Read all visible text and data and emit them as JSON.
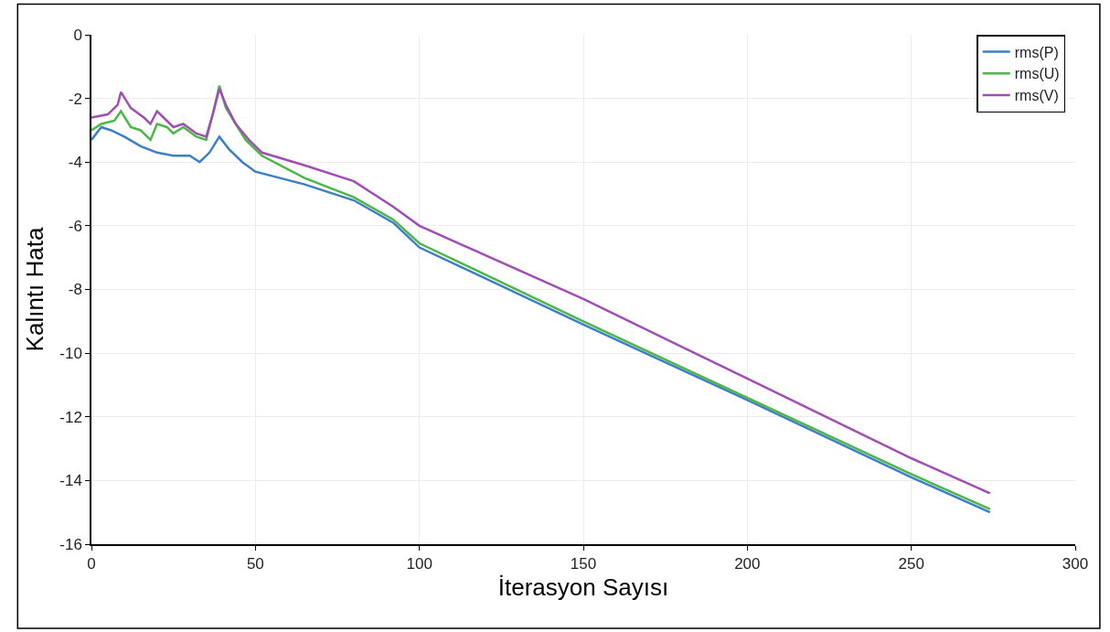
{
  "chart_data": {
    "type": "line",
    "xlabel": "İterasyon Sayısı",
    "ylabel": "Kalıntı Hata",
    "xlim": [
      0,
      300
    ],
    "xticks": [
      0,
      50,
      100,
      150,
      200,
      250,
      300
    ],
    "ylim": [
      -16,
      0
    ],
    "yticks": [
      -16,
      -14,
      -12,
      -10,
      -8,
      -6,
      -4,
      -2,
      0
    ],
    "grid": true,
    "legend": "top right",
    "marker": "none",
    "line_style": "solid",
    "series": [
      {
        "name": "rms(P)",
        "color": "#3d7fc4",
        "x": [
          0,
          3,
          6,
          10,
          15,
          20,
          25,
          30,
          33,
          36,
          39,
          42,
          46,
          50,
          65,
          80,
          92,
          100,
          150,
          200,
          250,
          274
        ],
        "values": [
          -3.3,
          -2.9,
          -3.0,
          -3.2,
          -3.5,
          -3.7,
          -3.8,
          -3.8,
          -4.0,
          -3.7,
          -3.2,
          -3.6,
          -4.0,
          -4.3,
          -4.7,
          -5.2,
          -5.9,
          -6.68,
          -9.1,
          -11.47,
          -13.9,
          -15.0
        ]
      },
      {
        "name": "rms(U)",
        "color": "#4cb748",
        "x": [
          0,
          3,
          7,
          9,
          12,
          15,
          18,
          20,
          23,
          25,
          28,
          32,
          35,
          37,
          39,
          41,
          44,
          47,
          52,
          65,
          80,
          92,
          100,
          150,
          200,
          250,
          274
        ],
        "values": [
          -3.0,
          -2.8,
          -2.7,
          -2.4,
          -2.9,
          -3.0,
          -3.3,
          -2.8,
          -2.9,
          -3.1,
          -2.9,
          -3.2,
          -3.3,
          -2.5,
          -1.6,
          -2.3,
          -2.8,
          -3.3,
          -3.8,
          -4.5,
          -5.1,
          -5.8,
          -6.55,
          -9.0,
          -11.4,
          -13.8,
          -14.9
        ]
      },
      {
        "name": "rms(V)",
        "color": "#a04eb4",
        "x": [
          0,
          5,
          8,
          9,
          12,
          16,
          18,
          20,
          22,
          25,
          28,
          32,
          35,
          37,
          39,
          41,
          44,
          48,
          52,
          65,
          80,
          92,
          100,
          150,
          200,
          250,
          274
        ],
        "values": [
          -2.6,
          -2.5,
          -2.2,
          -1.8,
          -2.3,
          -2.6,
          -2.8,
          -2.4,
          -2.6,
          -2.9,
          -2.8,
          -3.1,
          -3.2,
          -2.5,
          -1.7,
          -2.2,
          -2.8,
          -3.3,
          -3.7,
          -4.1,
          -4.6,
          -5.4,
          -6.0,
          -8.3,
          -10.8,
          -13.3,
          -14.4
        ]
      }
    ]
  }
}
